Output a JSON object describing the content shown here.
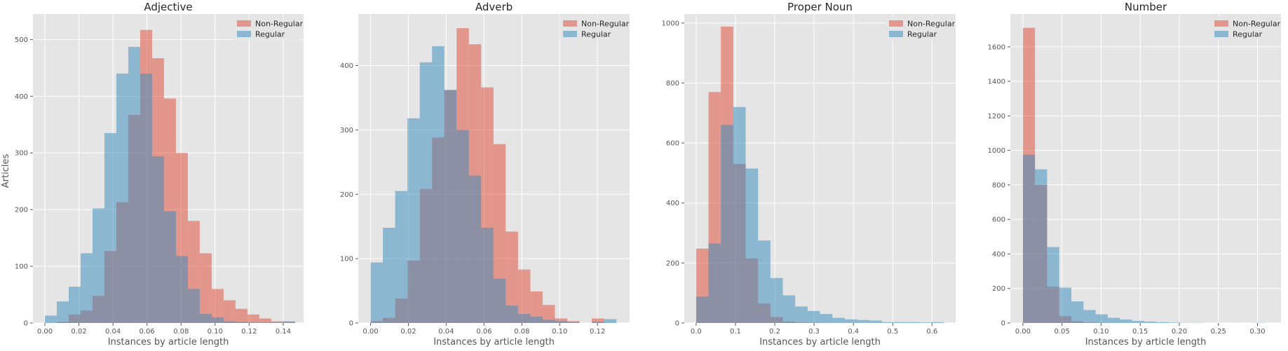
{
  "figure": {
    "ylabel": "Articles",
    "colors": {
      "non_regular": "#E24A33",
      "regular": "#348ABD",
      "panel_bg": "#E5E5E5",
      "grid": "#FFFFFF"
    }
  },
  "chart_data": [
    {
      "type": "bar",
      "title": "Adjective",
      "xlabel": "Instances by article length",
      "ylabel": "Articles",
      "xlim": [
        -0.007,
        0.152
      ],
      "ylim": [
        0,
        545
      ],
      "xticks": [
        0.0,
        0.02,
        0.04,
        0.06,
        0.08,
        0.1,
        0.12,
        0.14
      ],
      "xtick_labels": [
        "0.00",
        "0.02",
        "0.04",
        "0.06",
        "0.08",
        "0.10",
        "0.12",
        "0.14"
      ],
      "yticks": [
        0,
        100,
        200,
        300,
        400,
        500
      ],
      "ytick_labels": [
        "0",
        "100",
        "200",
        "300",
        "400",
        "500"
      ],
      "grid": true,
      "legend_position": "top-right",
      "series": [
        {
          "name": "Non-Regular",
          "bins": [
            0.0,
            0.007,
            0.014,
            0.021,
            0.028,
            0.035,
            0.042,
            0.049,
            0.056,
            0.063,
            0.07,
            0.077,
            0.084,
            0.091,
            0.098,
            0.105,
            0.112,
            0.119,
            0.126,
            0.133,
            0.14,
            0.147
          ],
          "values": [
            0,
            2,
            15,
            22,
            48,
            127,
            213,
            367,
            517,
            467,
            396,
            300,
            180,
            123,
            60,
            40,
            25,
            15,
            8,
            3,
            2
          ]
        },
        {
          "name": "Regular",
          "bins": [
            0.0,
            0.007,
            0.014,
            0.021,
            0.028,
            0.035,
            0.042,
            0.049,
            0.056,
            0.063,
            0.07,
            0.077,
            0.084,
            0.091,
            0.098,
            0.105,
            0.112,
            0.119,
            0.126,
            0.133,
            0.14,
            0.147
          ],
          "values": [
            13,
            38,
            64,
            123,
            202,
            335,
            440,
            487,
            440,
            294,
            197,
            118,
            60,
            16,
            10,
            3,
            2,
            1,
            1,
            1,
            3
          ]
        }
      ]
    },
    {
      "type": "bar",
      "title": "Adverb",
      "xlabel": "Instances by article length",
      "ylabel": "",
      "xlim": [
        -0.0065,
        0.137
      ],
      "ylim": [
        0,
        480
      ],
      "xticks": [
        0.0,
        0.02,
        0.04,
        0.06,
        0.08,
        0.1,
        0.12
      ],
      "xtick_labels": [
        "0.00",
        "0.02",
        "0.04",
        "0.06",
        "0.08",
        "0.10",
        "0.12"
      ],
      "yticks": [
        0,
        100,
        200,
        300,
        400
      ],
      "ytick_labels": [
        "0",
        "100",
        "200",
        "300",
        "400"
      ],
      "grid": true,
      "legend_position": "top-right",
      "series": [
        {
          "name": "Non-Regular",
          "bins": [
            0.0,
            0.0065,
            0.013,
            0.0195,
            0.026,
            0.0325,
            0.039,
            0.0455,
            0.052,
            0.0585,
            0.065,
            0.0715,
            0.078,
            0.0845,
            0.091,
            0.0975,
            0.104,
            0.1105,
            0.117,
            0.1235,
            0.13
          ],
          "values": [
            3,
            8,
            38,
            97,
            208,
            288,
            362,
            458,
            433,
            366,
            278,
            142,
            83,
            49,
            28,
            7,
            3,
            0,
            7,
            0
          ]
        },
        {
          "name": "Regular",
          "bins": [
            0.0,
            0.0065,
            0.013,
            0.0195,
            0.026,
            0.0325,
            0.039,
            0.0455,
            0.052,
            0.0585,
            0.065,
            0.0715,
            0.078,
            0.0845,
            0.091,
            0.0975,
            0.104,
            0.1105,
            0.117,
            0.1235,
            0.13
          ],
          "values": [
            94,
            148,
            205,
            318,
            405,
            430,
            362,
            300,
            229,
            148,
            69,
            27,
            14,
            10,
            5,
            3,
            1,
            0,
            2,
            6
          ]
        }
      ]
    },
    {
      "type": "bar",
      "title": "Proper Noun",
      "xlabel": "Instances by article length",
      "ylabel": "",
      "xlim": [
        -0.03,
        0.66
      ],
      "ylim": [
        0,
        1030
      ],
      "xticks": [
        0.0,
        0.1,
        0.2,
        0.3,
        0.4,
        0.5,
        0.6
      ],
      "xtick_labels": [
        "0.0",
        "0.1",
        "0.2",
        "0.3",
        "0.4",
        "0.5",
        "0.6"
      ],
      "yticks": [
        0,
        200,
        400,
        600,
        800,
        1000
      ],
      "ytick_labels": [
        "0",
        "200",
        "400",
        "600",
        "800",
        "1000"
      ],
      "grid": true,
      "legend_position": "top-right",
      "series": [
        {
          "name": "Non-Regular",
          "bins": [
            0.0,
            0.0315,
            0.063,
            0.0945,
            0.126,
            0.1575,
            0.189,
            0.2205,
            0.252,
            0.2835,
            0.315,
            0.3465,
            0.378,
            0.4095,
            0.441,
            0.4725,
            0.504,
            0.5355,
            0.567,
            0.5985,
            0.63
          ],
          "values": [
            248,
            770,
            988,
            530,
            215,
            65,
            20,
            5,
            2,
            1,
            0,
            0,
            0,
            0,
            0,
            0,
            0,
            0,
            0,
            0
          ]
        },
        {
          "name": "Regular",
          "bins": [
            0.0,
            0.0315,
            0.063,
            0.0945,
            0.126,
            0.1575,
            0.189,
            0.2205,
            0.252,
            0.2835,
            0.315,
            0.3465,
            0.378,
            0.4095,
            0.441,
            0.4725,
            0.504,
            0.5355,
            0.567,
            0.5985,
            0.63
          ],
          "values": [
            88,
            265,
            660,
            720,
            515,
            275,
            150,
            92,
            55,
            40,
            30,
            17,
            12,
            10,
            8,
            3,
            3,
            3,
            2,
            3
          ]
        }
      ]
    },
    {
      "type": "bar",
      "title": "Number",
      "xlabel": "Instances by article length",
      "ylabel": "",
      "xlim": [
        -0.016,
        0.33
      ],
      "ylim": [
        0,
        1790
      ],
      "xticks": [
        0.0,
        0.05,
        0.1,
        0.15,
        0.2,
        0.25,
        0.3
      ],
      "xtick_labels": [
        "0.00",
        "0.05",
        "0.10",
        "0.15",
        "0.20",
        "0.25",
        "0.30"
      ],
      "yticks": [
        0,
        200,
        400,
        600,
        800,
        1000,
        1200,
        1400,
        1600
      ],
      "ytick_labels": [
        "0",
        "200",
        "400",
        "600",
        "800",
        "1000",
        "1200",
        "1400",
        "1600"
      ],
      "grid": true,
      "legend_position": "top-right",
      "series": [
        {
          "name": "Non-Regular",
          "bins": [
            0.0,
            0.0155,
            0.031,
            0.0465,
            0.062,
            0.0775,
            0.093,
            0.1085,
            0.124,
            0.1395,
            0.155,
            0.1705,
            0.186,
            0.2015,
            0.217,
            0.2325,
            0.248,
            0.2635,
            0.279,
            0.2945,
            0.31
          ],
          "values": [
            1710,
            800,
            210,
            40,
            10,
            3,
            1,
            0,
            0,
            0,
            0,
            0,
            0,
            0,
            0,
            0,
            0,
            0,
            0,
            0
          ]
        },
        {
          "name": "Regular",
          "bins": [
            0.0,
            0.0155,
            0.031,
            0.0465,
            0.062,
            0.0775,
            0.093,
            0.1085,
            0.124,
            0.1395,
            0.155,
            0.1705,
            0.186,
            0.2015,
            0.217,
            0.2325,
            0.248,
            0.2635,
            0.279,
            0.2945,
            0.31
          ],
          "values": [
            975,
            890,
            440,
            205,
            125,
            75,
            50,
            30,
            20,
            12,
            8,
            5,
            3,
            1,
            1,
            0,
            0,
            0,
            0,
            1
          ]
        }
      ]
    }
  ]
}
